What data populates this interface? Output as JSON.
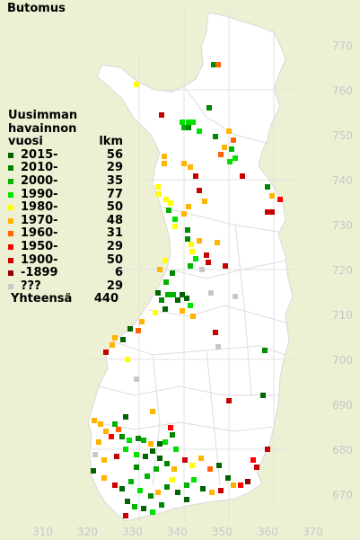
{
  "title": "Butomus",
  "legend": {
    "header_lines": [
      "Uusimman",
      "havainnon"
    ],
    "col_year": "vuosi",
    "col_count": "lkm",
    "rows": [
      {
        "label": "2015-",
        "count": "56",
        "color": "#006400"
      },
      {
        "label": "2010-",
        "count": "29",
        "color": "#008800"
      },
      {
        "label": "2000-",
        "count": "35",
        "color": "#00b400"
      },
      {
        "label": "1990-",
        "count": "77",
        "color": "#00e000"
      },
      {
        "label": "1980-",
        "count": "50",
        "color": "#ffff00"
      },
      {
        "label": "1970-",
        "count": "48",
        "color": "#ffb400"
      },
      {
        "label": "1960-",
        "count": "31",
        "color": "#ff6400"
      },
      {
        "label": "1950-",
        "count": "29",
        "color": "#ff0000"
      },
      {
        "label": "1900-",
        "count": "50",
        "color": "#c80000"
      },
      {
        "label": "-1899",
        "count": "6",
        "color": "#8b0000"
      },
      {
        "label": "???",
        "count": "29",
        "color": "#c8c8c8"
      }
    ],
    "total_label": "Yhteensä",
    "total_count": "440"
  },
  "axes": {
    "x_ticks": [
      "310",
      "320",
      "330",
      "340",
      "350",
      "360",
      "370"
    ],
    "y_ticks": [
      "770",
      "760",
      "750",
      "740",
      "730",
      "720",
      "710",
      "700",
      "690",
      "680",
      "670"
    ]
  }
}
